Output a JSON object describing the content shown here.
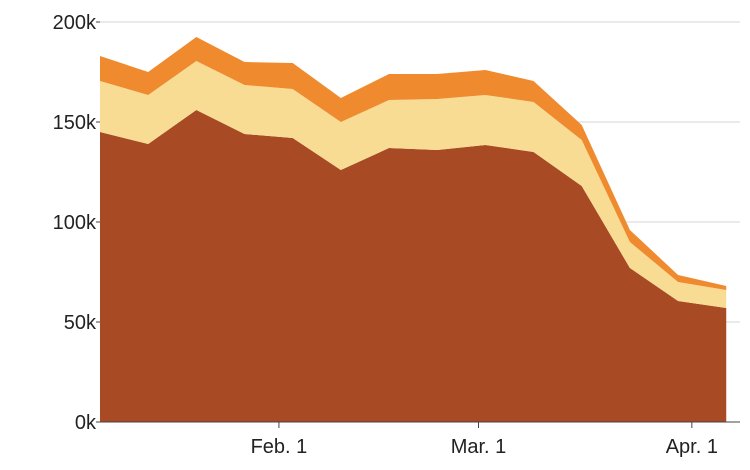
{
  "chart_data": {
    "type": "area",
    "stacked": true,
    "title": "",
    "xlabel": "",
    "ylabel": "",
    "x": [
      "2020-01-06",
      "2020-01-13",
      "2020-01-20",
      "2020-01-27",
      "2020-02-03",
      "2020-02-10",
      "2020-02-17",
      "2020-02-24",
      "2020-03-02",
      "2020-03-09",
      "2020-03-16",
      "2020-03-23",
      "2020-03-30",
      "2020-04-06"
    ],
    "xlim": [
      "2020-01-06",
      "2020-04-08"
    ],
    "x_ticks": [
      {
        "date": "2020-02-01",
        "label": "Feb. 1"
      },
      {
        "date": "2020-03-01",
        "label": "Mar. 1"
      },
      {
        "date": "2020-04-01",
        "label": "Apr. 1"
      }
    ],
    "ylim": [
      0,
      200000
    ],
    "y_ticks": [
      {
        "value": 0,
        "label": "0k"
      },
      {
        "value": 50000,
        "label": "50k"
      },
      {
        "value": 100000,
        "label": "100k"
      },
      {
        "value": 150000,
        "label": "150k"
      },
      {
        "value": 200000,
        "label": "200k"
      }
    ],
    "grid": "horizontal",
    "legend": "none",
    "series": [
      {
        "color": "#a84b24",
        "values": [
          145000,
          139000,
          156000,
          144000,
          142000,
          126000,
          137000,
          136000,
          138500,
          135000,
          118000,
          77000,
          60500,
          57000
        ]
      },
      {
        "color": "#f9dc94",
        "values": [
          25500,
          24500,
          24500,
          24500,
          24500,
          24000,
          24000,
          25500,
          25000,
          25000,
          23000,
          13000,
          9500,
          9000
        ]
      },
      {
        "color": "#ef8a2e",
        "values": [
          12500,
          11500,
          12000,
          11500,
          13000,
          12000,
          13000,
          12500,
          12500,
          10500,
          7500,
          6000,
          3500,
          2000
        ]
      }
    ]
  }
}
